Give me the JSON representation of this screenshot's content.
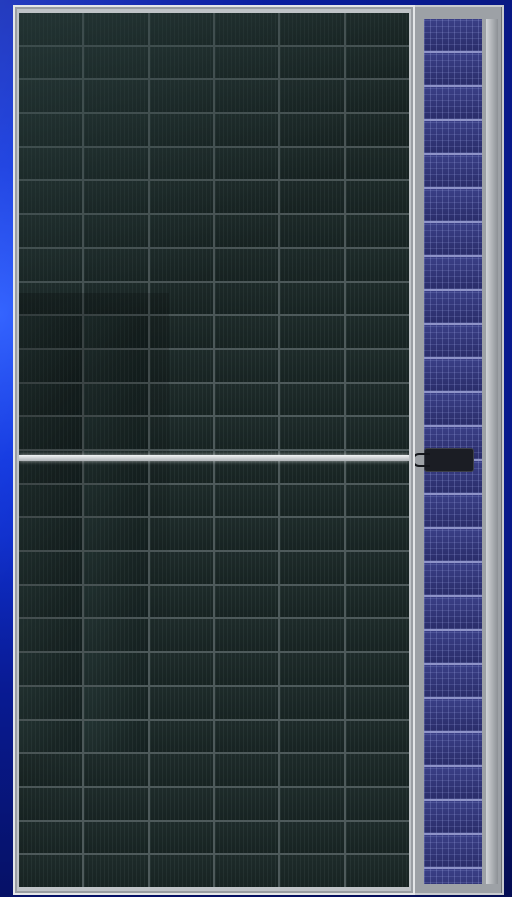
{
  "scene": {
    "subject": "solar-panel",
    "accent_colors": {
      "background": "#0a1fa8",
      "front_cells": "#172322",
      "back_cells": "#2c2f6e",
      "frame": "#bfc3c7"
    }
  }
}
